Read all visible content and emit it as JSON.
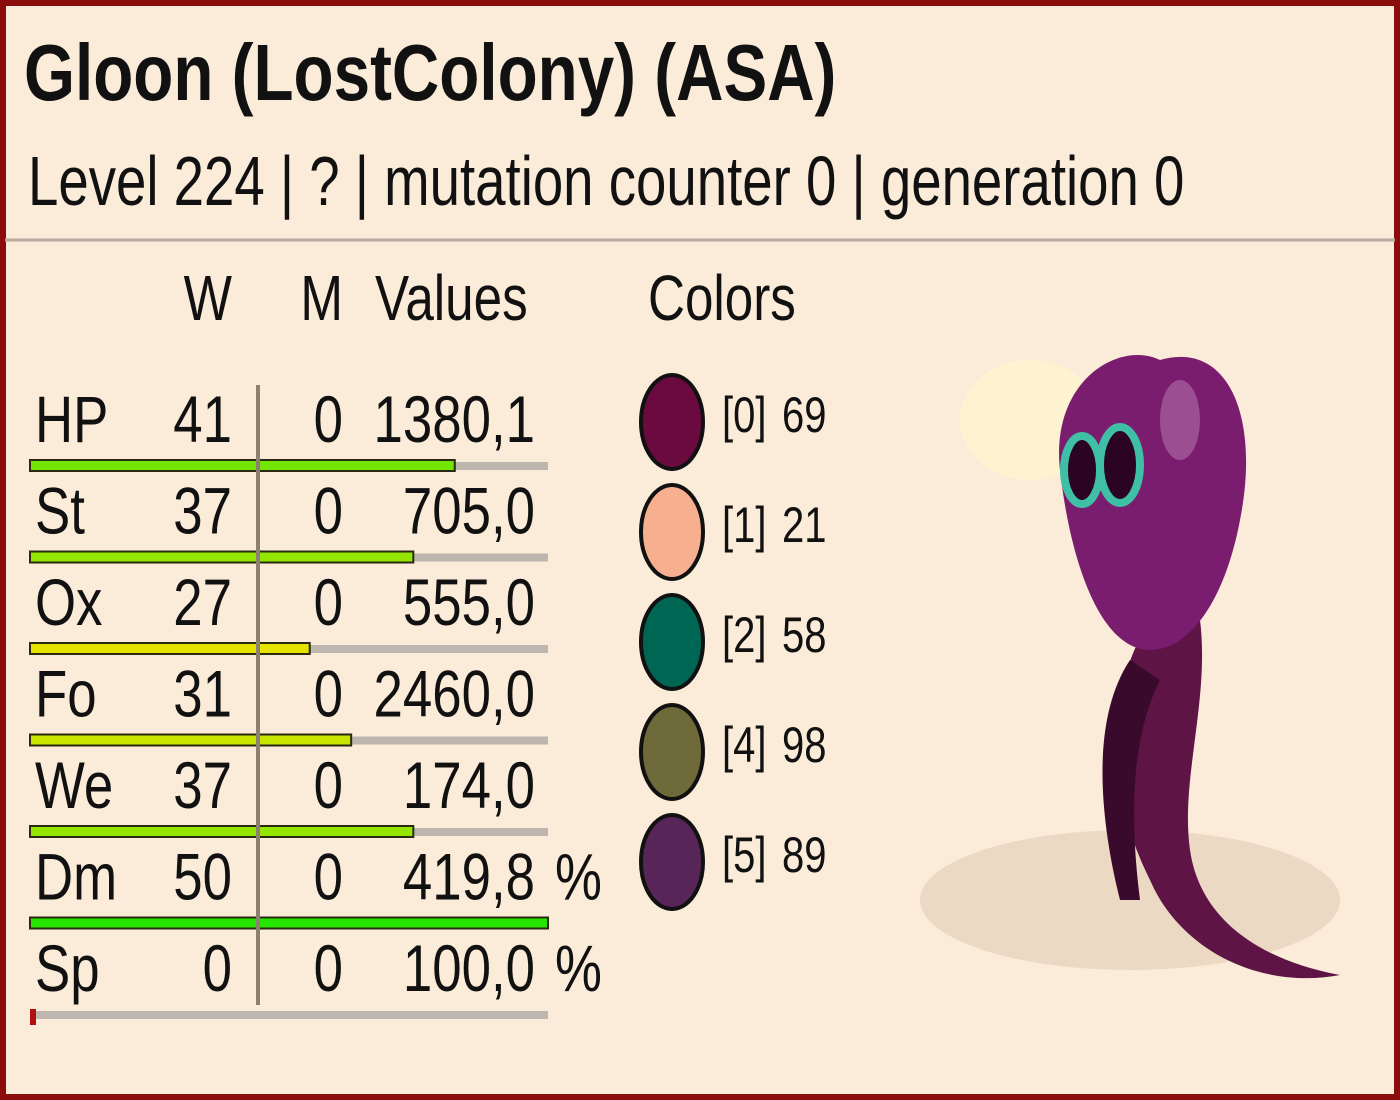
{
  "header": {
    "title": "Gloon (LostColony) (ASA)",
    "subtitle": "Level 224 | ? | mutation counter 0 | generation 0"
  },
  "table": {
    "columns": [
      "W",
      "M",
      "Values"
    ],
    "rows": [
      {
        "stat": "HP",
        "w": 41,
        "m": 0,
        "value": "1380,1"
      },
      {
        "stat": "St",
        "w": 37,
        "m": 0,
        "value": "705,0"
      },
      {
        "stat": "Ox",
        "w": 27,
        "m": 0,
        "value": "555,0"
      },
      {
        "stat": "Fo",
        "w": 31,
        "m": 0,
        "value": "2460,0"
      },
      {
        "stat": "We",
        "w": 37,
        "m": 0,
        "value": "174,0"
      },
      {
        "stat": "Dm",
        "w": 50,
        "m": 0,
        "value": "419,8",
        "unit": "%"
      },
      {
        "stat": "Sp",
        "w": 0,
        "m": 0,
        "value": "100,0",
        "unit": "%"
      }
    ]
  },
  "colors": {
    "title": "Colors",
    "items": [
      {
        "id": "[0]",
        "value": 69,
        "swatch": "#6b0a3f"
      },
      {
        "id": "[1]",
        "value": 21,
        "swatch": "#f7b08f"
      },
      {
        "id": "[2]",
        "value": 58,
        "swatch": "#006654"
      },
      {
        "id": "[4]",
        "value": 98,
        "swatch": "#6e6a3a"
      },
      {
        "id": "[5]",
        "value": 89,
        "swatch": "#582558"
      }
    ]
  }
}
